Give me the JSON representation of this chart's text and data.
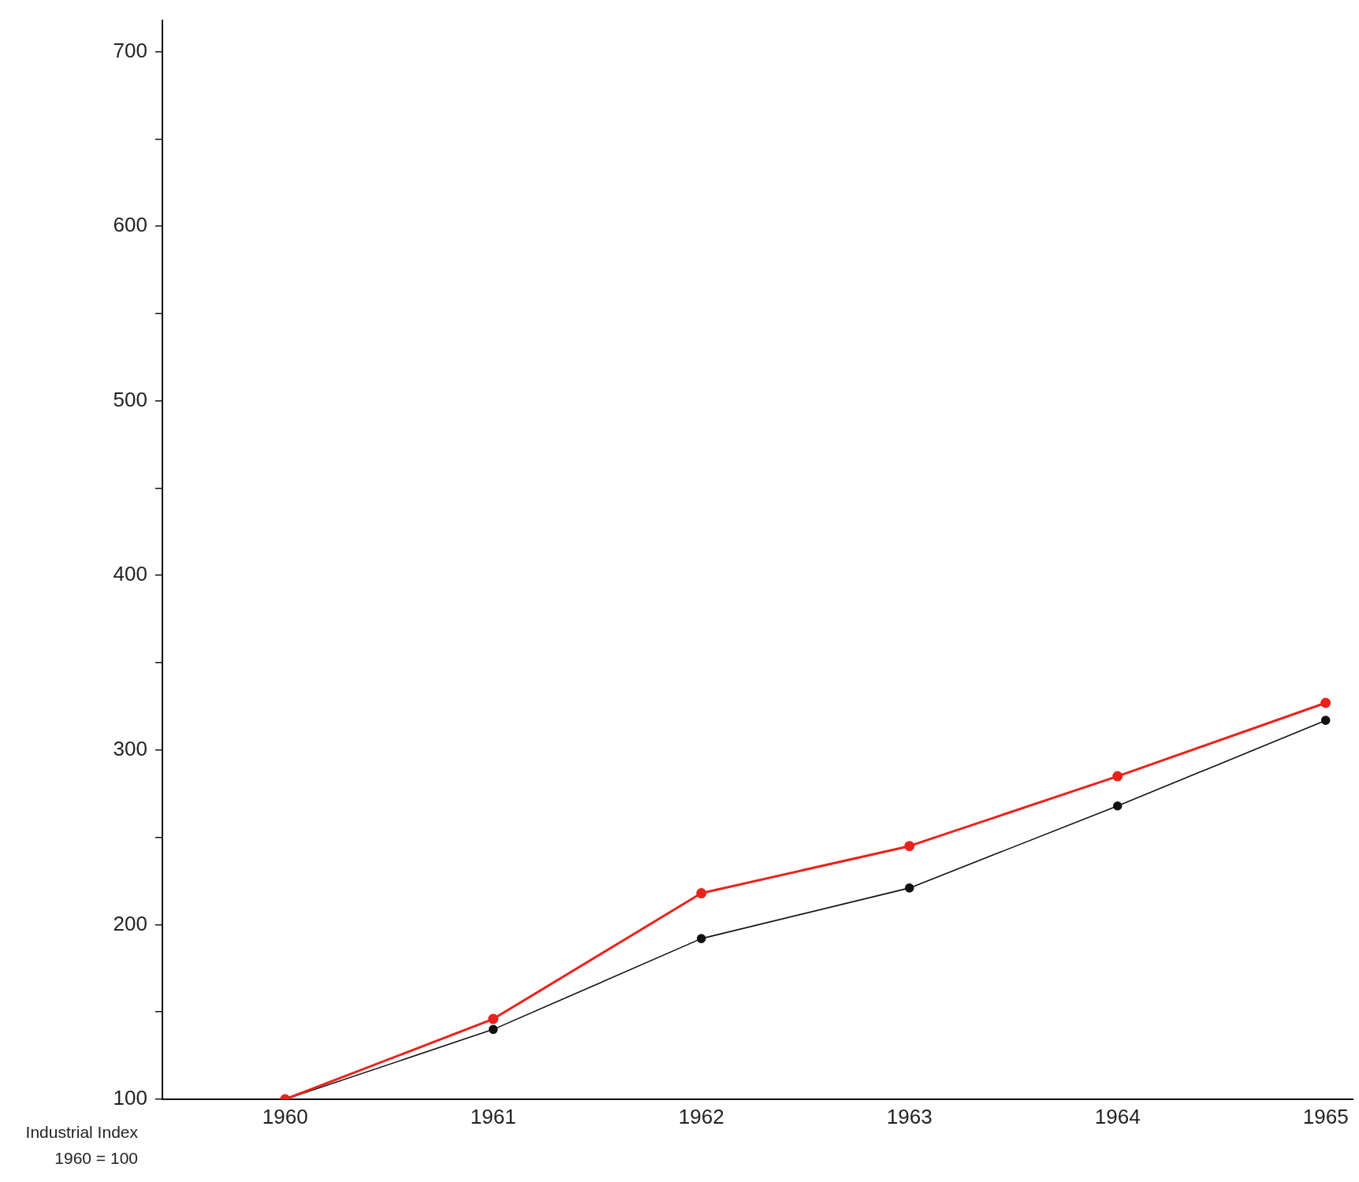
{
  "chart_data": {
    "type": "line",
    "x": [
      1960,
      1961,
      1962,
      1963,
      1964,
      1965
    ],
    "series": [
      {
        "color": "#e8231c",
        "values": [
          100,
          146,
          218,
          245,
          285,
          327
        ]
      },
      {
        "color": "#111111",
        "values": [
          100,
          140,
          192,
          221,
          268,
          317
        ]
      }
    ],
    "xlim": [
      1959.41,
      1965.13
    ],
    "xticks": [
      1960,
      1961,
      1962,
      1963,
      1964,
      1965
    ],
    "ylim": [
      100,
      718
    ],
    "yticks": [
      100,
      {
        "value": 150,
        "label": null
      },
      200,
      {
        "value": 250,
        "label": null
      },
      300,
      {
        "value": 350,
        "label": null
      },
      400,
      {
        "value": 450,
        "label": null
      },
      500,
      {
        "value": 550,
        "label": null
      },
      600,
      {
        "value": 650,
        "label": null
      },
      700
    ],
    "annotations": [
      "Industrial Index",
      "1960 = 100"
    ],
    "grid": false,
    "legend": false,
    "marker": "circle",
    "line_style": "solid"
  }
}
